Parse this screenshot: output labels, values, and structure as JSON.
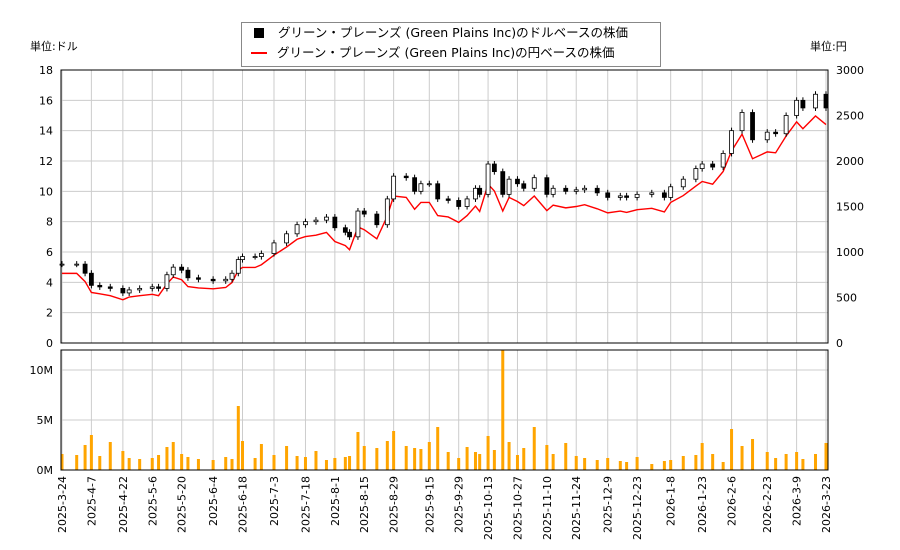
{
  "chart_data": [
    {
      "type": "candlestick+line",
      "left_unit_label": "単位:ドル",
      "right_unit_label": "単位:円",
      "legend": [
        "グリーン・プレーンズ (Green Plains Inc)のドルベースの株価",
        "グリーン・プレーンズ (Green Plains Inc)の円ベースの株価"
      ],
      "legend_placement": "top-center",
      "colors": {
        "usd": "#000000",
        "jpy": "#ff0000",
        "volume": "#ffa500"
      },
      "ylim_usd": [
        0,
        18
      ],
      "yticks_usd": [
        0,
        2,
        4,
        6,
        8,
        10,
        12,
        14,
        16,
        18
      ],
      "ylim_jpy": [
        0,
        3000
      ],
      "yticks_jpy": [
        0,
        500,
        1000,
        1500,
        2000,
        2500,
        3000
      ],
      "grid": true,
      "dates": [
        "2025-03-24",
        "2025-03-31",
        "2025-04-04",
        "2025-04-07",
        "2025-04-11",
        "2025-04-16",
        "2025-04-22",
        "2025-04-25",
        "2025-04-30",
        "2025-05-06",
        "2025-05-09",
        "2025-05-13",
        "2025-05-16",
        "2025-05-20",
        "2025-05-23",
        "2025-05-28",
        "2025-06-04",
        "2025-06-10",
        "2025-06-13",
        "2025-06-16",
        "2025-06-18",
        "2025-06-24",
        "2025-06-27",
        "2025-07-03",
        "2025-07-09",
        "2025-07-14",
        "2025-07-18",
        "2025-07-23",
        "2025-07-28",
        "2025-08-01",
        "2025-08-06",
        "2025-08-08",
        "2025-08-12",
        "2025-08-15",
        "2025-08-21",
        "2025-08-26",
        "2025-08-29",
        "2025-09-04",
        "2025-09-08",
        "2025-09-11",
        "2025-09-15",
        "2025-09-19",
        "2025-09-24",
        "2025-09-29",
        "2025-10-03",
        "2025-10-07",
        "2025-10-09",
        "2025-10-13",
        "2025-10-16",
        "2025-10-20",
        "2025-10-23",
        "2025-10-27",
        "2025-10-30",
        "2025-11-04",
        "2025-11-10",
        "2025-11-13",
        "2025-11-19",
        "2025-11-24",
        "2025-11-28",
        "2025-12-04",
        "2025-12-09",
        "2025-12-15",
        "2025-12-18",
        "2025-12-23",
        "2025-12-30",
        "2026-01-05",
        "2026-01-08",
        "2026-01-14",
        "2026-01-20",
        "2026-01-23",
        "2026-01-28",
        "2026-02-02",
        "2026-02-06",
        "2026-02-11",
        "2026-02-16",
        "2026-02-23",
        "2026-02-27",
        "2026-03-04",
        "2026-03-09",
        "2026-03-12",
        "2026-03-18",
        "2026-03-23"
      ],
      "close_usd": [
        5.2,
        5.2,
        4.6,
        3.8,
        3.7,
        3.6,
        3.3,
        3.5,
        3.6,
        3.7,
        3.6,
        4.5,
        5.0,
        4.8,
        4.3,
        4.2,
        4.1,
        4.2,
        4.6,
        5.5,
        5.7,
        5.7,
        5.9,
        6.6,
        7.2,
        7.8,
        8.0,
        8.1,
        8.3,
        7.6,
        7.3,
        7.0,
        8.7,
        8.5,
        7.8,
        9.5,
        11.0,
        10.9,
        10.0,
        10.5,
        10.5,
        9.5,
        9.4,
        9.0,
        9.5,
        10.2,
        9.8,
        11.8,
        11.3,
        9.8,
        10.8,
        10.5,
        10.2,
        10.9,
        9.8,
        10.2,
        10.0,
        10.1,
        10.2,
        9.9,
        9.6,
        9.7,
        9.6,
        9.8,
        9.9,
        9.6,
        10.3,
        10.8,
        11.5,
        11.8,
        11.6,
        12.5,
        14.0,
        15.2,
        13.4,
        13.9,
        13.8,
        15.0,
        16.0,
        15.5,
        16.4,
        15.5
      ],
      "close_jpy": [
        765,
        765,
        675,
        555,
        540,
        520,
        475,
        505,
        520,
        535,
        520,
        650,
        725,
        695,
        620,
        605,
        595,
        610,
        665,
        800,
        830,
        830,
        860,
        965,
        1055,
        1140,
        1170,
        1185,
        1215,
        1115,
        1070,
        1025,
        1275,
        1245,
        1145,
        1395,
        1615,
        1600,
        1470,
        1545,
        1545,
        1400,
        1385,
        1325,
        1400,
        1505,
        1445,
        1745,
        1670,
        1450,
        1600,
        1555,
        1510,
        1615,
        1455,
        1515,
        1485,
        1500,
        1520,
        1475,
        1430,
        1450,
        1435,
        1465,
        1480,
        1440,
        1545,
        1620,
        1725,
        1775,
        1745,
        1885,
        2110,
        2295,
        2025,
        2100,
        2090,
        2275,
        2430,
        2355,
        2495,
        2400
      ],
      "xtick_labels": [
        "2025-3-24",
        "2025-4-7",
        "2025-4-22",
        "2025-5-6",
        "2025-5-20",
        "2025-6-4",
        "2025-6-18",
        "2025-7-3",
        "2025-7-18",
        "2025-8-1",
        "2025-8-15",
        "2025-8-29",
        "2025-9-15",
        "2025-9-29",
        "2025-10-13",
        "2025-10-27",
        "2025-11-10",
        "2025-11-24",
        "2025-12-9",
        "2025-12-23",
        "2026-1-8",
        "2026-1-23",
        "2026-2-6",
        "2026-2-23",
        "2026-3-9",
        "2026-3-23"
      ]
    },
    {
      "type": "bar",
      "ylim": [
        0,
        12
      ],
      "ytick_labels": [
        "0M",
        "5M",
        "10M"
      ],
      "yticks": [
        0,
        5,
        10
      ],
      "volume_millions": [
        1.6,
        1.5,
        2.5,
        3.5,
        1.4,
        2.8,
        1.9,
        1.2,
        1.1,
        1.2,
        1.5,
        2.3,
        2.8,
        1.6,
        1.3,
        1.1,
        1.0,
        1.3,
        1.1,
        6.4,
        2.9,
        1.2,
        2.6,
        1.5,
        2.4,
        1.4,
        1.3,
        1.9,
        1.0,
        1.2,
        1.3,
        1.4,
        3.8,
        2.4,
        2.2,
        2.9,
        3.9,
        2.4,
        2.2,
        2.1,
        2.8,
        4.3,
        1.8,
        1.2,
        2.3,
        1.8,
        1.6,
        3.4,
        2.0,
        12.0,
        2.8,
        1.5,
        2.2,
        4.3,
        2.5,
        1.6,
        2.7,
        1.4,
        1.2,
        1.0,
        1.2,
        0.9,
        0.8,
        1.3,
        0.6,
        0.9,
        1.0,
        1.4,
        1.5,
        2.7,
        1.6,
        0.8,
        4.1,
        2.4,
        3.1,
        1.8,
        1.2,
        1.6,
        1.8,
        1.1,
        1.6,
        2.7
      ]
    }
  ]
}
